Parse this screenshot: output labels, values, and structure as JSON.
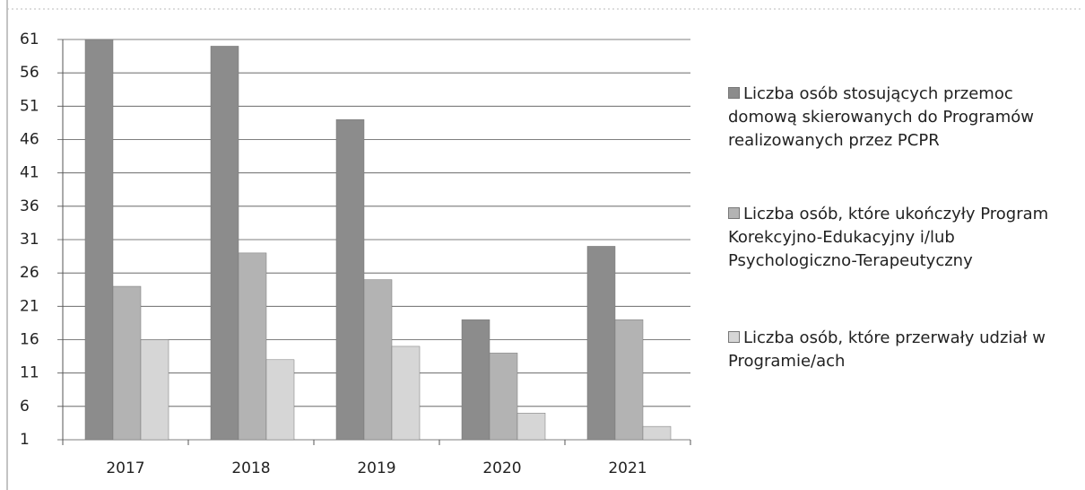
{
  "chart_data": {
    "type": "bar",
    "categories": [
      "2017",
      "2018",
      "2019",
      "2020",
      "2021"
    ],
    "series": [
      {
        "name": "Liczba osób stosujących przemoc domową skierowanych do Programów realizowanych przez PCPR",
        "color": "#8c8c8c",
        "values": [
          61,
          60,
          49,
          19,
          30
        ]
      },
      {
        "name": "Liczba osób, które ukończyły Program Korekcyjno-Edukacyjny i/lub Psychologiczno-Terapeutyczny",
        "color": "#b3b3b3",
        "values": [
          24,
          29,
          25,
          14,
          19
        ]
      },
      {
        "name": "Liczba osób, które przerwały udział w Programie/ach",
        "color": "#d6d6d6",
        "values": [
          16,
          13,
          15,
          5,
          3
        ]
      }
    ],
    "ylim": [
      1,
      61
    ],
    "yticks": [
      1,
      6,
      11,
      16,
      21,
      26,
      31,
      36,
      41,
      46,
      51,
      56,
      61
    ],
    "grid": true,
    "legend": "right"
  }
}
